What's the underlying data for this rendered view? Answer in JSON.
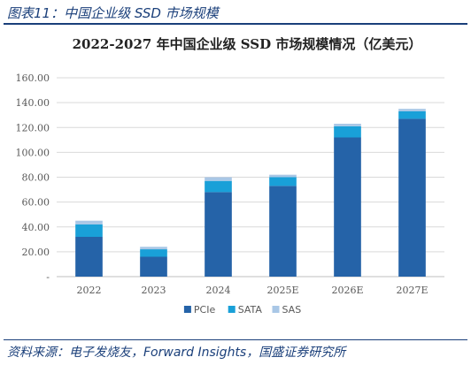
{
  "figure_caption": "图表11：中国企业级 SSD 市场规模",
  "source_note": "资料来源：电子发烧友，Forward Insights，国盛证券研究所",
  "colors": {
    "caption": "#1a3f7a",
    "PCIe": "#2563a8",
    "SATA": "#19a0d8",
    "SAS": "#a9c7e6",
    "grid": "#d9d9d9",
    "axis": "#bfbfbf"
  },
  "chart_data": {
    "type": "bar",
    "stacked": true,
    "title": "2022-2027 年中国企业级 SSD 市场规模情况（亿美元）",
    "categories": [
      "2022",
      "2023",
      "2024",
      "2025E",
      "2026E",
      "2027E"
    ],
    "series": [
      {
        "name": "PCIe",
        "values": [
          32,
          16,
          68,
          73,
          112,
          127
        ]
      },
      {
        "name": "SATA",
        "values": [
          10,
          6,
          9,
          7,
          9,
          6
        ]
      },
      {
        "name": "SAS",
        "values": [
          3,
          2,
          3,
          2,
          2,
          2
        ]
      }
    ],
    "ylim": [
      0,
      160
    ],
    "yticks": [
      0,
      20,
      40,
      60,
      80,
      100,
      120,
      140,
      160
    ],
    "ytick_labels": [
      "-",
      "20.00",
      "40.00",
      "60.00",
      "80.00",
      "100.00",
      "120.00",
      "140.00",
      "160.00"
    ],
    "xlabel": "",
    "ylabel": "",
    "grid": true,
    "legend_position": "bottom"
  }
}
